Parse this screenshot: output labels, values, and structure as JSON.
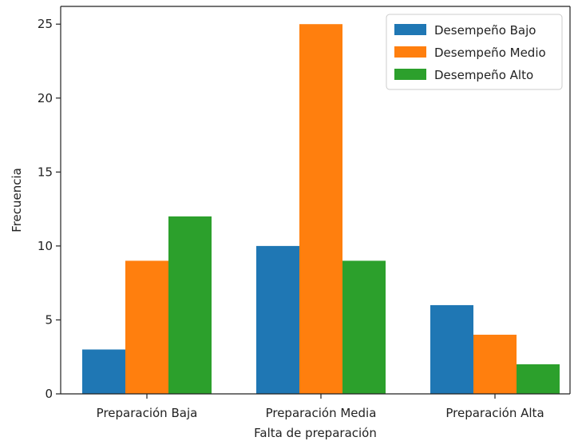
{
  "chart_data": {
    "type": "bar",
    "title": "",
    "xlabel": "Falta de preparación",
    "ylabel": "Frecuencia",
    "categories": [
      "Preparación Baja",
      "Preparación Media",
      "Preparación Alta"
    ],
    "series": [
      {
        "name": "Desempeño Bajo",
        "values": [
          3,
          10,
          6
        ],
        "color": "#1f77b4"
      },
      {
        "name": "Desempeño Medio",
        "values": [
          9,
          25,
          4
        ],
        "color": "#ff7f0e"
      },
      {
        "name": "Desempeño Alto",
        "values": [
          12,
          9,
          2
        ],
        "color": "#2ca02c"
      }
    ],
    "ylim": [
      0,
      26.2
    ],
    "yticks": [
      0,
      5,
      10,
      15,
      20,
      25
    ],
    "grid": false,
    "legend_position": "top-right"
  }
}
